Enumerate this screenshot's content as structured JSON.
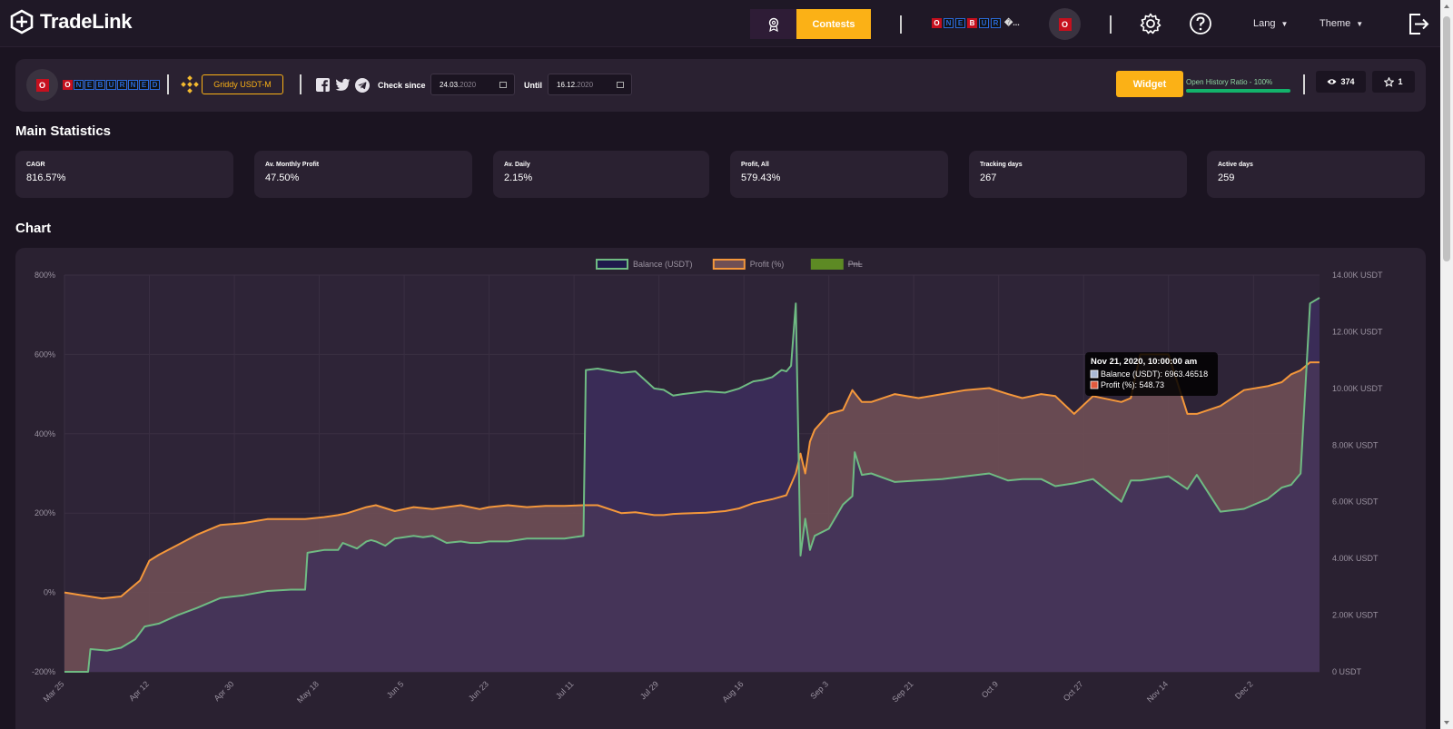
{
  "brand": {
    "name": "TradeLink"
  },
  "nav": {
    "contests_label": "Contests",
    "lang_label": "Lang",
    "theme_label": "Theme",
    "avatar_letter": "O"
  },
  "trader": {
    "avatar_letter": "O",
    "brand_letters": [
      "O",
      "N",
      "E",
      "B",
      "U",
      "R",
      "N",
      "E",
      "D"
    ],
    "strategy": "Griddy USDT-M"
  },
  "filters": {
    "check_since_label": "Check since",
    "check_since_value": "24.03.",
    "check_since_year": "2020",
    "until_label": "Until",
    "until_value": "16.12.",
    "until_year": "2020"
  },
  "widget": {
    "label": "Widget"
  },
  "history": {
    "label": "Open History Ratio - 100%",
    "ratio": 1.0
  },
  "counters": {
    "views": "374",
    "stars": "1"
  },
  "main_stats": {
    "title": "Main Statistics",
    "items": [
      {
        "label": "CAGR",
        "value": "816.57%"
      },
      {
        "label": "Av. Monthly Profit",
        "value": "47.50%"
      },
      {
        "label": "Av. Daily",
        "value": "2.15%"
      },
      {
        "label": "Profit, All",
        "value": "579.43%"
      },
      {
        "label": "Tracking days",
        "value": "267"
      },
      {
        "label": "Active days",
        "value": "259"
      }
    ]
  },
  "chart_section": {
    "title": "Chart"
  },
  "chart_data": {
    "type": "area",
    "legend": [
      "Balance (USDT)",
      "Profit (%)",
      "PnL"
    ],
    "legend_placement": "top-center",
    "pnl_hidden": true,
    "colors": {
      "balance": "#6fbb83",
      "profit": "#f4973b",
      "pnl": "#5d8a24",
      "balance_fill": "#1f1a4c",
      "profit_fill": "#6f4f55",
      "base_fill": "#403059"
    },
    "x_ticks": [
      "Mar 25",
      "Apr 12",
      "Apr 30",
      "May 18",
      "Jun 5",
      "Jun 23",
      "Jul 11",
      "Jul 29",
      "Aug 16",
      "Sep 3",
      "Sep 21",
      "Oct 9",
      "Oct 27",
      "Nov 14",
      "Dec 2"
    ],
    "y_left_ticks": [
      "800%",
      "600%",
      "400%",
      "200%",
      "0%",
      "-200%"
    ],
    "y_left_range": [
      -200,
      800
    ],
    "y_right_ticks": [
      "14.00K USDT",
      "12.00K USDT",
      "10.00K USDT",
      "8.00K USDT",
      "6.00K USDT",
      "4.00K USDT",
      "2.00K USDT",
      "0 USDT"
    ],
    "y_right_range": [
      0,
      14000
    ],
    "x_range_days": [
      0,
      266
    ],
    "balance": {
      "x": [
        0,
        5,
        5.5,
        9,
        12,
        15,
        17,
        20,
        24,
        28,
        33,
        38,
        43,
        48,
        51,
        51.5,
        55,
        58,
        59,
        62,
        64,
        65,
        66,
        68,
        70,
        72,
        74,
        76,
        78,
        81,
        84,
        86,
        88,
        90,
        94,
        98,
        102,
        106,
        110,
        110.5,
        113,
        118,
        121,
        125,
        127,
        129,
        131,
        136,
        140,
        143,
        146,
        148,
        150,
        152,
        153,
        154,
        155,
        156,
        157,
        158,
        159,
        162,
        165,
        167,
        167.5,
        169,
        171,
        176,
        181,
        186,
        191,
        196,
        200,
        203,
        207,
        210,
        214,
        218,
        224,
        226,
        228,
        234,
        238,
        240,
        245,
        250,
        255,
        258,
        260,
        262,
        264,
        266
      ],
      "y": [
        0,
        0,
        800,
        750,
        850,
        1150,
        1600,
        1700,
        2000,
        2250,
        2600,
        2700,
        2850,
        2900,
        2900,
        4200,
        4300,
        4300,
        4550,
        4350,
        4600,
        4650,
        4600,
        4450,
        4700,
        4750,
        4800,
        4750,
        4800,
        4550,
        4600,
        4550,
        4550,
        4600,
        4600,
        4700,
        4700,
        4700,
        4800,
        10650,
        10700,
        10550,
        10600,
        10000,
        9950,
        9750,
        9800,
        9900,
        9850,
        10000,
        10250,
        10300,
        10400,
        10650,
        10600,
        10800,
        13000,
        4100,
        5400,
        4300,
        4800,
        5050,
        5900,
        6200,
        7750,
        6950,
        7000,
        6700,
        6750,
        6800,
        6900,
        7000,
        6750,
        6800,
        6800,
        6550,
        6650,
        6800,
        6000,
        6750,
        6750,
        6900,
        6450,
        6950,
        5650,
        5750,
        6100,
        6500,
        6600,
        7000,
        13000,
        13200
      ]
    },
    "profit": {
      "x": [
        0,
        8,
        12,
        16,
        18,
        20,
        24,
        28,
        33,
        38,
        43,
        48,
        51,
        55,
        58,
        60,
        64,
        66,
        70,
        72,
        74,
        78,
        84,
        88,
        90,
        94,
        98,
        102,
        106,
        110,
        113,
        118,
        121,
        125,
        127,
        129,
        131,
        136,
        140,
        143,
        146,
        150,
        153,
        155,
        156,
        157,
        158,
        159,
        162,
        165,
        167,
        169,
        171,
        176,
        181,
        186,
        191,
        196,
        200,
        203,
        207,
        210,
        214,
        218,
        224,
        226,
        228,
        234,
        238,
        240,
        245,
        250,
        255,
        258,
        260,
        262,
        264,
        266
      ],
      "y": [
        0,
        -15,
        -10,
        30,
        80,
        95,
        120,
        145,
        170,
        175,
        185,
        185,
        185,
        190,
        195,
        200,
        215,
        220,
        205,
        210,
        215,
        210,
        220,
        210,
        215,
        220,
        215,
        218,
        218,
        220,
        220,
        200,
        202,
        195,
        195,
        198,
        199,
        201,
        205,
        212,
        225,
        235,
        245,
        300,
        350,
        300,
        380,
        410,
        450,
        460,
        510,
        480,
        480,
        500,
        490,
        500,
        510,
        515,
        500,
        490,
        500,
        495,
        450,
        495,
        480,
        490,
        600,
        600,
        450,
        450,
        470,
        510,
        520,
        530,
        550,
        560,
        580,
        580
      ]
    },
    "tooltip": {
      "title": "Nov 21, 2020, 10:00:00 am",
      "lines": [
        "Balance (USDT): 6963.46518",
        "Profit (%): 548.73"
      ]
    }
  }
}
